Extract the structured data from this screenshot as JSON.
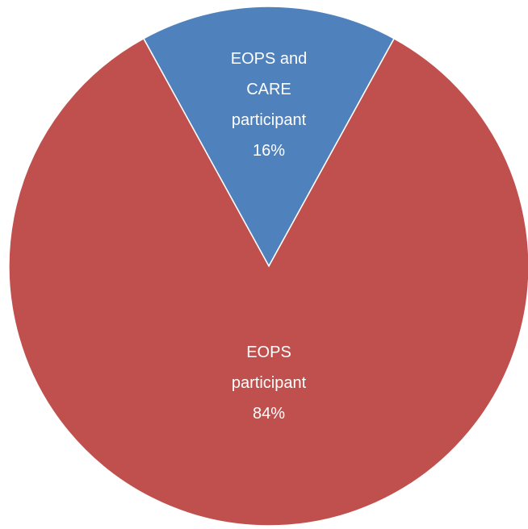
{
  "chart_data": {
    "type": "pie",
    "categories": [
      "EOPS and CARE participant",
      "EOPS participant"
    ],
    "values": [
      16,
      84
    ],
    "value_labels": [
      "16%",
      "84%"
    ],
    "colors": [
      "#4f81bd",
      "#c0504d"
    ]
  }
}
